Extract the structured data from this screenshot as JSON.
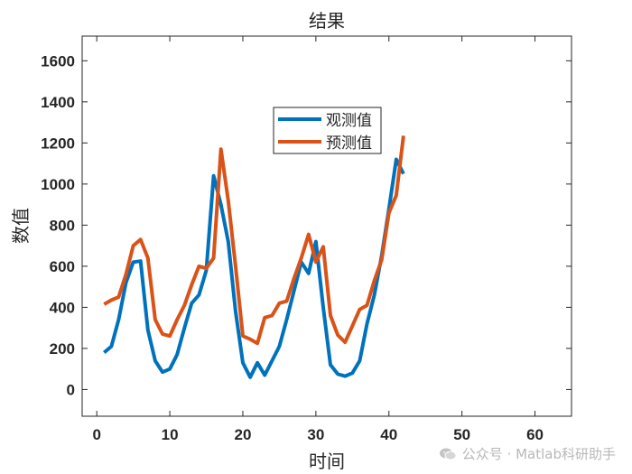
{
  "chart_data": {
    "type": "line",
    "title": "结果",
    "xlabel": "时间",
    "ylabel": "数值",
    "xlim": [
      -2,
      65
    ],
    "ylim": [
      -130,
      1720
    ],
    "xticks": [
      0,
      10,
      20,
      30,
      40,
      50,
      60
    ],
    "yticks": [
      0,
      200,
      400,
      600,
      800,
      1000,
      1200,
      1400,
      1600
    ],
    "grid": false,
    "legend_position": "upper-center",
    "series": [
      {
        "name": "观测值",
        "color": "#0072BD",
        "x": [
          1,
          2,
          3,
          4,
          5,
          6,
          7,
          8,
          9,
          10,
          11,
          12,
          13,
          14,
          15,
          16,
          17,
          18,
          19,
          20,
          21,
          22,
          23,
          24,
          25,
          26,
          27,
          28,
          29,
          30,
          31,
          32,
          33,
          34,
          35,
          36,
          37,
          38,
          39,
          40,
          41,
          42
        ],
        "values": [
          180,
          210,
          340,
          520,
          620,
          625,
          290,
          140,
          85,
          100,
          170,
          300,
          420,
          460,
          580,
          1040,
          900,
          720,
          380,
          130,
          60,
          130,
          70,
          140,
          210,
          340,
          480,
          620,
          565,
          720,
          400,
          120,
          75,
          65,
          80,
          140,
          320,
          460,
          650,
          880,
          1120,
          1050
        ]
      },
      {
        "name": "预测值",
        "color": "#D95319",
        "x": [
          1,
          2,
          3,
          4,
          5,
          6,
          7,
          8,
          9,
          10,
          11,
          12,
          13,
          14,
          15,
          16,
          17,
          18,
          19,
          20,
          21,
          22,
          23,
          24,
          25,
          26,
          27,
          28,
          29,
          30,
          31,
          32,
          33,
          34,
          35,
          36,
          37,
          38,
          39,
          40,
          41,
          42
        ],
        "values": [
          415,
          435,
          450,
          560,
          700,
          730,
          640,
          340,
          270,
          260,
          340,
          410,
          510,
          600,
          590,
          640,
          1170,
          920,
          600,
          260,
          245,
          225,
          350,
          360,
          420,
          430,
          540,
          640,
          755,
          620,
          695,
          360,
          265,
          230,
          310,
          390,
          410,
          530,
          630,
          860,
          945,
          1235
        ]
      }
    ]
  },
  "watermark": {
    "text": "公众号 · Matlab科研助手",
    "icon": "wechat-icon"
  }
}
